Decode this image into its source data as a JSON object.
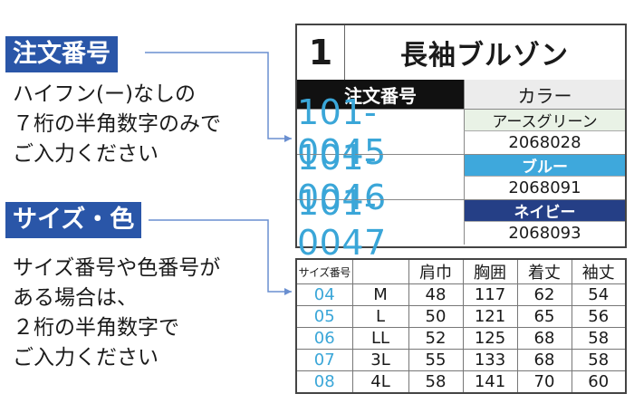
{
  "left": {
    "order_label": "注文番号",
    "order_desc": "ハイフン(ー)なしの\n７桁の半角数字のみで\nご入力ください",
    "size_label": "サイズ・色",
    "size_desc": "サイズ番号や色番号が\nある場合は、\n２桁の半角数字で\nご入力ください"
  },
  "card": {
    "number": "1",
    "product_name": "長袖ブルゾン",
    "order_header": "注文番号",
    "color_header": "カラー",
    "rows": [
      {
        "order_no": "101-0045",
        "color_name": "アースグリーン",
        "color_code": "2068028",
        "bg": "#e9f2e6",
        "fg": "#1a1a1a"
      },
      {
        "order_no": "101-0046",
        "color_name": "ブルー",
        "color_code": "2068091",
        "bg": "#3ea8dc",
        "fg": "#ffffff"
      },
      {
        "order_no": "101-0047",
        "color_name": "ネイビー",
        "color_code": "2068093",
        "bg": "#253f86",
        "fg": "#ffffff"
      }
    ]
  },
  "size_table": {
    "headers": [
      "サイズ番号",
      "",
      "肩巾",
      "胸囲",
      "着丈",
      "袖丈"
    ],
    "rows": [
      [
        "04",
        "M",
        "48",
        "117",
        "62",
        "54"
      ],
      [
        "05",
        "L",
        "50",
        "121",
        "65",
        "56"
      ],
      [
        "06",
        "LL",
        "52",
        "125",
        "68",
        "58"
      ],
      [
        "07",
        "3L",
        "55",
        "133",
        "68",
        "58"
      ],
      [
        "08",
        "4L",
        "58",
        "141",
        "70",
        "60"
      ]
    ]
  },
  "colors": {
    "label_bg": "#2a56a8",
    "accent_blue": "#3aa6d8",
    "connector": "#6a8fd0"
  }
}
